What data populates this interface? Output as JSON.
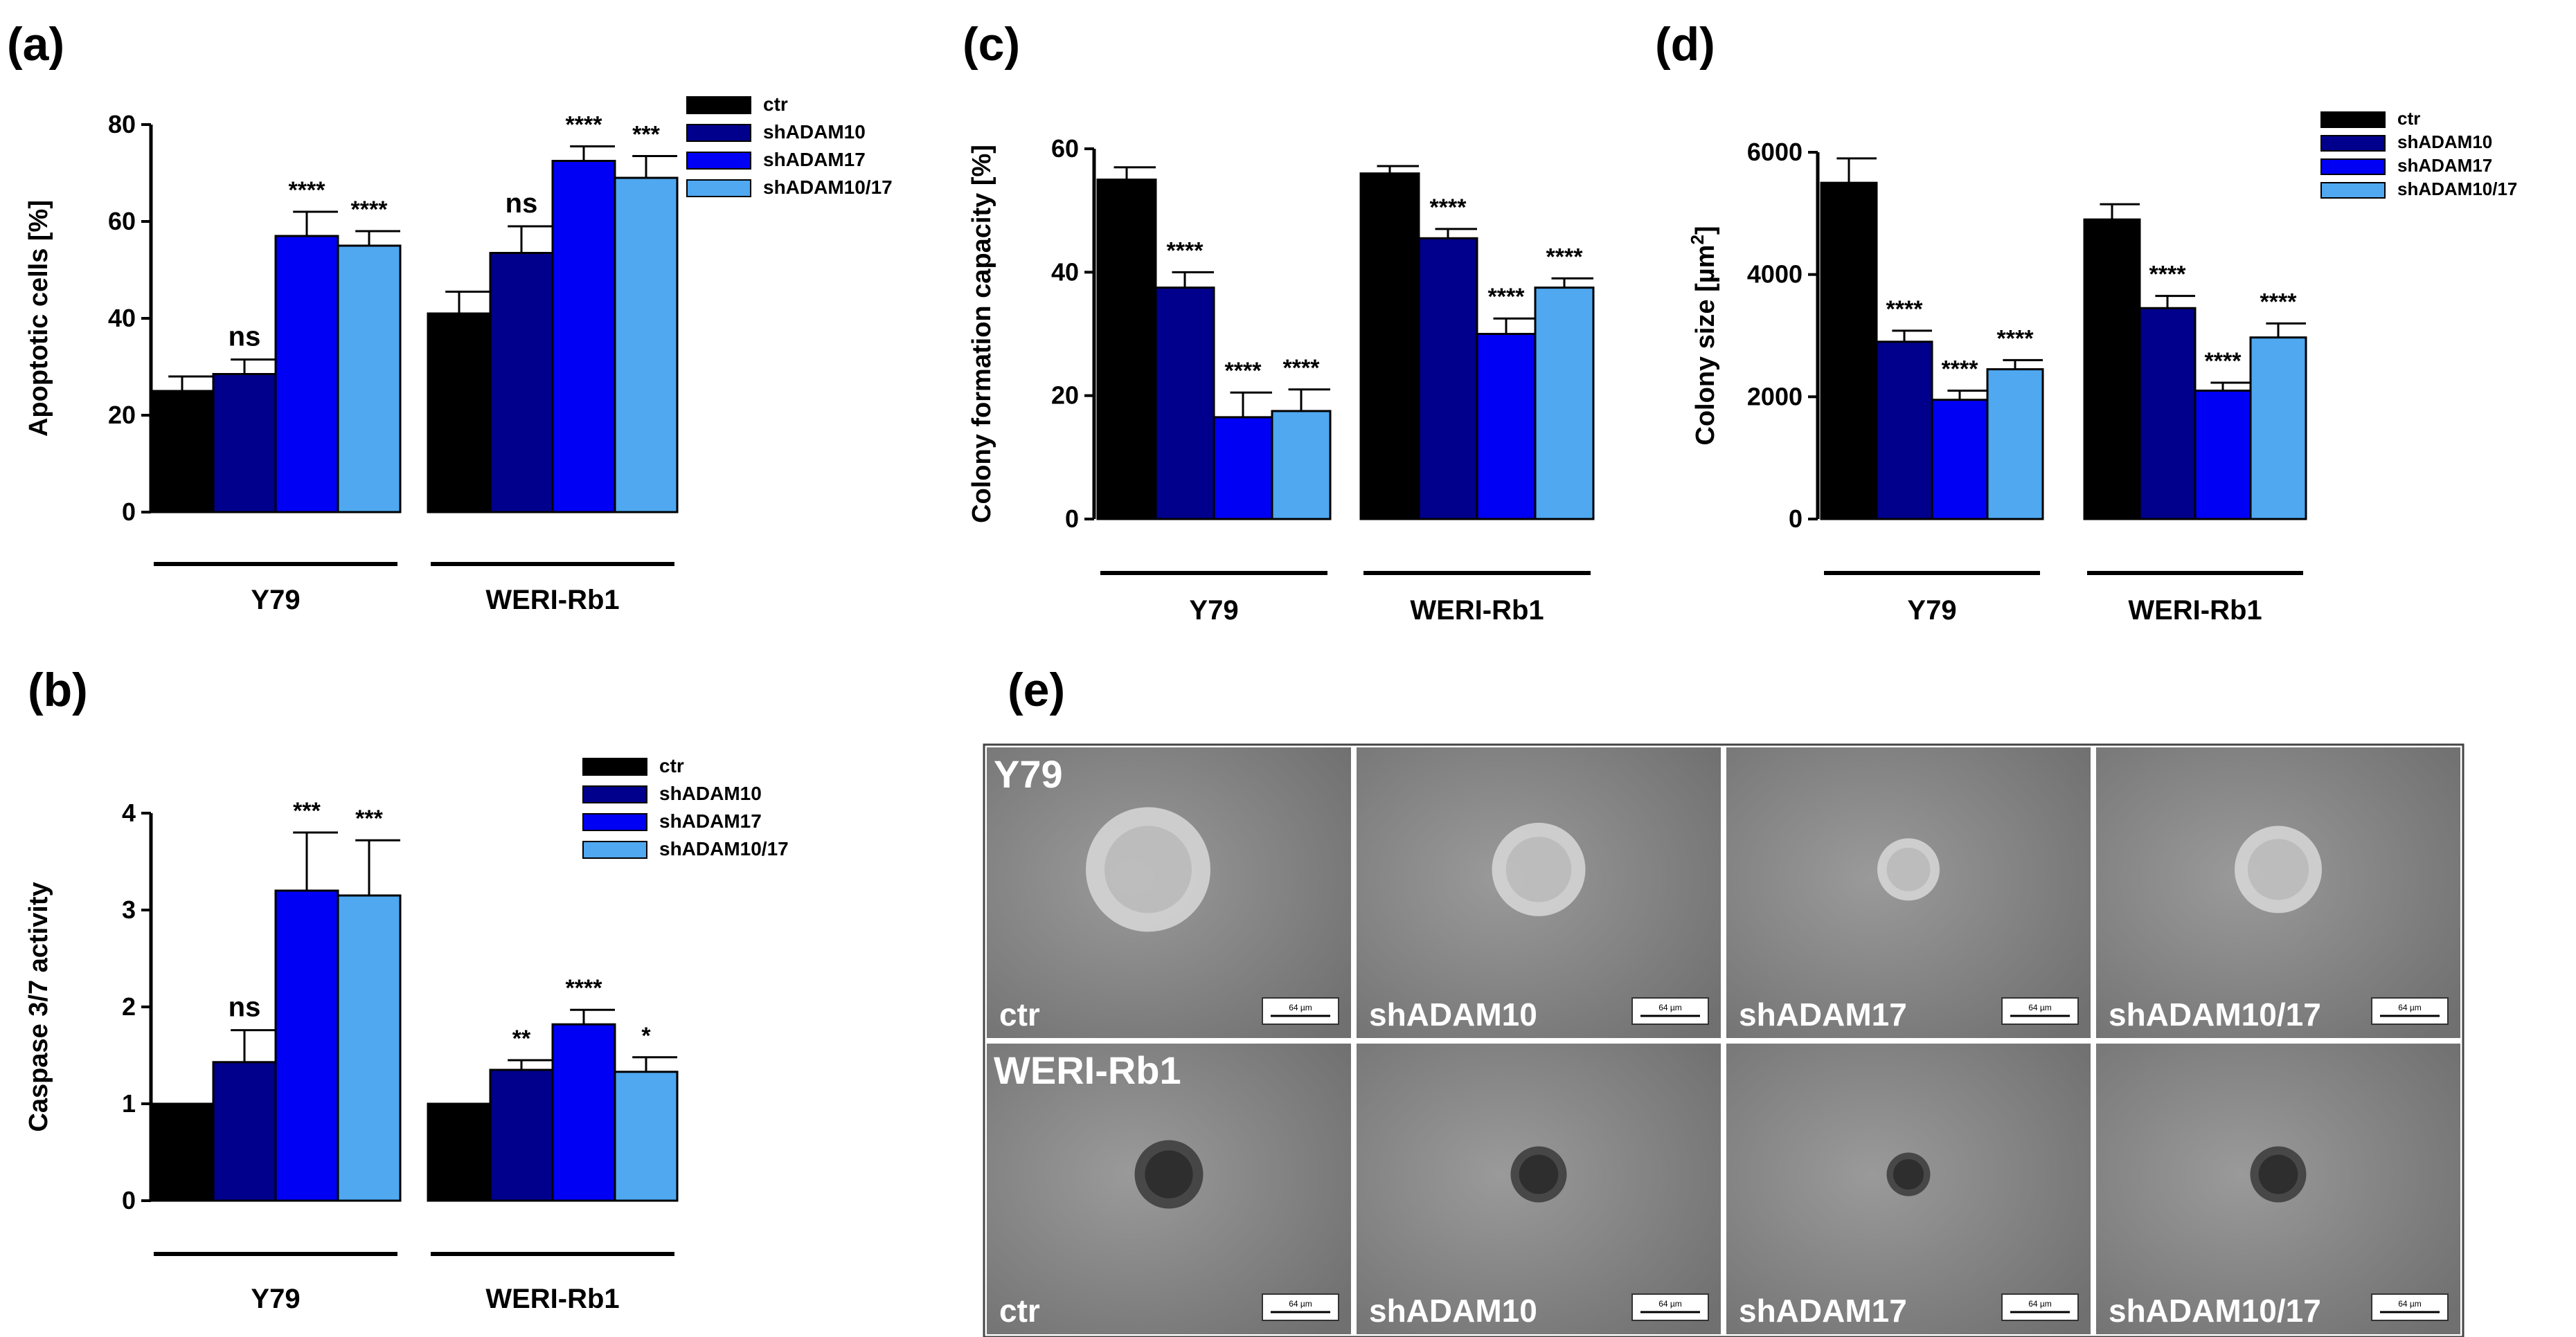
{
  "colors": {
    "ctr": "#000000",
    "shADAM10": "#00008C",
    "shADAM17": "#0000F5",
    "shADAM10_17": "#4FA8F0",
    "photo_bg": "#8a8a8a",
    "photo_label": "#ffffff"
  },
  "legend_labels": [
    "ctr",
    "shADAM10",
    "shADAM17",
    "shADAM10/17"
  ],
  "chart_data": [
    {
      "id": "a",
      "type": "bar",
      "panel_label": "(a)",
      "ylabel": "Apoptotic cells [%]",
      "ylim": [
        0,
        80
      ],
      "yticks": [
        0,
        20,
        40,
        60,
        80
      ],
      "groups": [
        "Y79",
        "WERI-Rb1"
      ],
      "series": [
        {
          "name": "ctr",
          "values": [
            25,
            41
          ],
          "errors": [
            3,
            4.5
          ],
          "sig": [
            "",
            ""
          ]
        },
        {
          "name": "shADAM10",
          "values": [
            28.5,
            53.5
          ],
          "errors": [
            3,
            5.5
          ],
          "sig": [
            "ns",
            "ns"
          ]
        },
        {
          "name": "shADAM17",
          "values": [
            57,
            72.5
          ],
          "errors": [
            5,
            3
          ],
          "sig": [
            "****",
            "****"
          ]
        },
        {
          "name": "shADAM10/17",
          "values": [
            55,
            69
          ],
          "errors": [
            3,
            4.5
          ],
          "sig": [
            "****",
            "***"
          ]
        }
      ],
      "legend_position": "top-right"
    },
    {
      "id": "b",
      "type": "bar",
      "panel_label": "(b)",
      "ylabel": "Caspase 3/7 activity",
      "ylim": [
        0,
        4
      ],
      "yticks": [
        0,
        1,
        2,
        3,
        4
      ],
      "groups": [
        "Y79",
        "WERI-Rb1"
      ],
      "series": [
        {
          "name": "ctr",
          "values": [
            1,
            1
          ],
          "errors": [
            0,
            0
          ],
          "sig": [
            "",
            ""
          ]
        },
        {
          "name": "shADAM10",
          "values": [
            1.43,
            1.35
          ],
          "errors": [
            0.33,
            0.1
          ],
          "sig": [
            "ns",
            "**"
          ]
        },
        {
          "name": "shADAM17",
          "values": [
            3.2,
            1.82
          ],
          "errors": [
            0.6,
            0.15
          ],
          "sig": [
            "***",
            "****"
          ]
        },
        {
          "name": "shADAM10/17",
          "values": [
            3.15,
            1.33
          ],
          "errors": [
            0.57,
            0.15
          ],
          "sig": [
            "***",
            "*"
          ]
        }
      ],
      "legend_position": "top-right"
    },
    {
      "id": "c",
      "type": "bar",
      "panel_label": "(c)",
      "ylabel": "Colony formation capacity [%]",
      "ylim": [
        0,
        60
      ],
      "yticks": [
        0,
        20,
        40,
        60
      ],
      "groups": [
        "Y79",
        "WERI-Rb1"
      ],
      "series": [
        {
          "name": "ctr",
          "values": [
            55,
            56
          ],
          "errors": [
            2,
            1.2
          ],
          "sig": [
            "",
            ""
          ]
        },
        {
          "name": "shADAM10",
          "values": [
            37.5,
            45.5
          ],
          "errors": [
            2.5,
            1.5
          ],
          "sig": [
            "****",
            "****"
          ]
        },
        {
          "name": "shADAM17",
          "values": [
            16.5,
            30
          ],
          "errors": [
            4,
            2.5
          ],
          "sig": [
            "****",
            "****"
          ]
        },
        {
          "name": "shADAM10/17",
          "values": [
            17.5,
            37.5
          ],
          "errors": [
            3.5,
            1.5
          ],
          "sig": [
            "****",
            "****"
          ]
        }
      ],
      "legend_position": "none"
    },
    {
      "id": "d",
      "type": "bar",
      "panel_label": "(d)",
      "ylabel": "Colony size [µm²]",
      "ylabel_text": "Colony size [µm",
      "ylabel_sup": "2",
      "ylabel_close": "]",
      "ylim": [
        0,
        6000
      ],
      "yticks": [
        0,
        2000,
        4000,
        6000
      ],
      "groups": [
        "Y79",
        "WERI-Rb1"
      ],
      "series": [
        {
          "name": "ctr",
          "values": [
            5500,
            4900
          ],
          "errors": [
            400,
            250
          ],
          "sig": [
            "",
            ""
          ]
        },
        {
          "name": "shADAM10",
          "values": [
            2900,
            3450
          ],
          "errors": [
            180,
            200
          ],
          "sig": [
            "****",
            "****"
          ]
        },
        {
          "name": "shADAM17",
          "values": [
            1950,
            2100
          ],
          "errors": [
            150,
            130
          ],
          "sig": [
            "****",
            "****"
          ]
        },
        {
          "name": "shADAM10/17",
          "values": [
            2450,
            2970
          ],
          "errors": [
            150,
            230
          ],
          "sig": [
            "****",
            "****"
          ]
        }
      ],
      "legend_position": "top-right"
    }
  ],
  "panel_e": {
    "panel_label": "(e)",
    "row_labels": [
      "Y79",
      "WERI-Rb1"
    ],
    "column_labels": [
      "ctr",
      "shADAM10",
      "shADAM17",
      "shADAM10/17"
    ],
    "scale_bar_text": "64 µm",
    "colony_relative_size": [
      [
        1.0,
        0.75,
        0.5,
        0.7
      ],
      [
        0.55,
        0.45,
        0.35,
        0.45
      ]
    ]
  }
}
